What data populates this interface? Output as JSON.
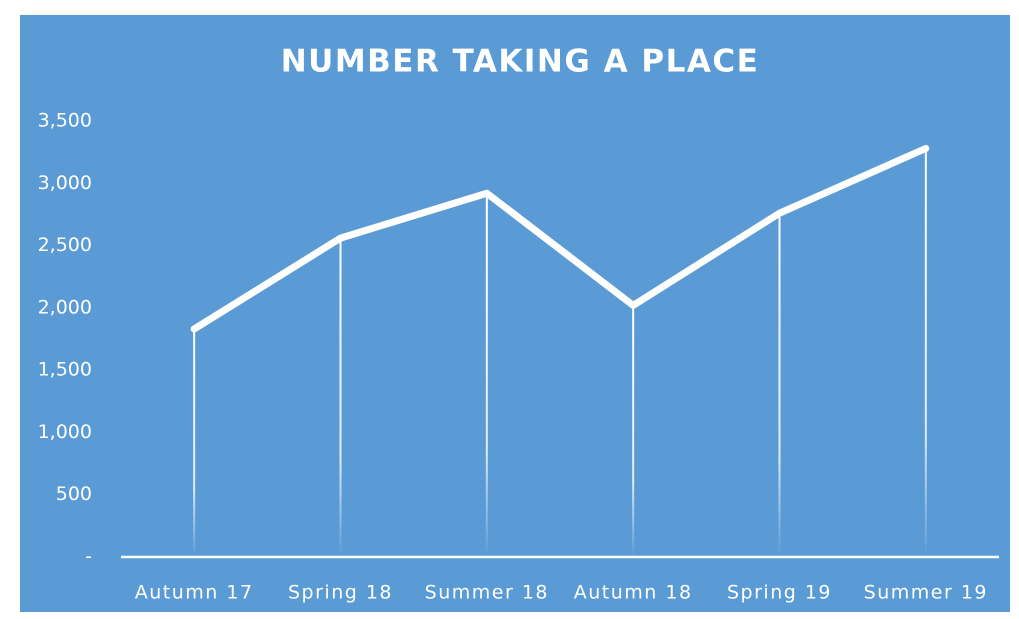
{
  "chart_data": {
    "type": "line",
    "title": "NUMBER TAKING A PLACE",
    "categories": [
      "Autumn 17",
      "Spring 18",
      "Summer 18",
      "Autumn 18",
      "Spring 19",
      "Summer 19"
    ],
    "values": [
      1830,
      2560,
      2920,
      2020,
      2760,
      3280
    ],
    "color": "#ffffff",
    "background": "#5b9bd5",
    "ylim": [
      0,
      3500
    ],
    "yticks": [
      {
        "value": 0,
        "label": "-"
      },
      500,
      {
        "value": 1000,
        "label": "1,000"
      },
      {
        "value": 1500,
        "label": "1,500"
      },
      {
        "value": 2000,
        "label": "2,000"
      },
      {
        "value": 2500,
        "label": "2,500"
      },
      {
        "value": 3000,
        "label": "3,000"
      },
      {
        "value": 3500,
        "label": "3,500"
      }
    ],
    "drop_lines": true
  }
}
